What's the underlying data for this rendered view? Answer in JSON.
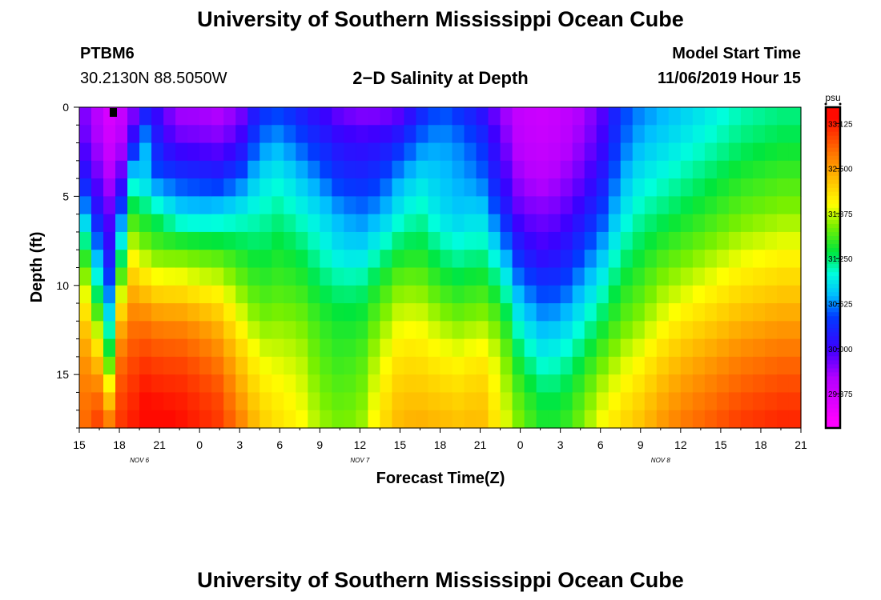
{
  "header": {
    "title": "University of Southern Mississippi Ocean Cube",
    "station_id": "PTBM6",
    "station_coords": "30.2130N 88.5050W",
    "chart_title": "2−D Salinity at Depth",
    "model_start_label": "Model Start Time",
    "model_start_value": "11/06/2019 Hour 15"
  },
  "footer": {
    "title": "University of Southern Mississippi Ocean Cube"
  },
  "chart_data": {
    "type": "heatmap",
    "title": "2−D Salinity at Depth",
    "xlabel": "Forecast Time(Z)",
    "ylabel": "Depth (ft)",
    "ylim": [
      0,
      18
    ],
    "x_start_hour_offset": 0,
    "x_end_hour_offset": 54,
    "x_ticks": [
      "15",
      "18",
      "21",
      "0",
      "3",
      "6",
      "9",
      "12",
      "15",
      "18",
      "21",
      "0",
      "3",
      "6",
      "9",
      "12",
      "15",
      "18",
      "21"
    ],
    "x_tick_hours": [
      0,
      3,
      6,
      9,
      12,
      15,
      18,
      21,
      24,
      27,
      30,
      33,
      36,
      39,
      42,
      45,
      48,
      51,
      54
    ],
    "date_labels": [
      {
        "text": "NOV  6",
        "hour": 4.5
      },
      {
        "text": "NOV  7",
        "hour": 21
      },
      {
        "text": "NOV  8",
        "hour": 43.5
      }
    ],
    "y_ticks": [
      "0",
      "5",
      "10",
      "15"
    ],
    "y_tick_values": [
      0,
      5,
      10,
      15
    ],
    "colorbar": {
      "unit": "psu",
      "min": 28.9,
      "max": 33.35,
      "ticks": [
        "33.125",
        "32.500",
        "31.875",
        "31.250",
        "30.625",
        "30.000",
        "29.375"
      ],
      "tick_values": [
        33.125,
        32.5,
        31.875,
        31.25,
        30.625,
        30.0,
        29.375
      ]
    },
    "column_hours": [
      0,
      0.75,
      1.5,
      2.25,
      3,
      3.75,
      4.5,
      5.25,
      6,
      7.5,
      9,
      10.5,
      12,
      13.5,
      15,
      16.5,
      18,
      19.5,
      21,
      22.5,
      24,
      25.5,
      27,
      28.5,
      30,
      31.5,
      33,
      34.5,
      36,
      37.5,
      39,
      40.5,
      42,
      43.5,
      45,
      46.5,
      48,
      49.5,
      51,
      52.5,
      54
    ],
    "column_profiles": [
      [
        29.8,
        29.95,
        30.3,
        30.9,
        31.6,
        32.1,
        32.3,
        32.45,
        32.55,
        32.6
      ],
      [
        29.7,
        29.8,
        30.1,
        30.6,
        31.2,
        31.7,
        32.2,
        32.6,
        32.8,
        32.9
      ],
      [
        29.5,
        29.6,
        29.8,
        30.1,
        30.5,
        31.0,
        31.6,
        32.2,
        32.7,
        33.0
      ],
      [
        29.3,
        29.4,
        29.6,
        29.9,
        30.1,
        30.5,
        31.0,
        31.5,
        32.2,
        32.8
      ],
      [
        29.4,
        29.5,
        29.7,
        30.3,
        30.9,
        31.6,
        32.3,
        32.7,
        32.9,
        33.0
      ],
      [
        29.6,
        29.9,
        30.8,
        31.5,
        32.0,
        32.4,
        32.7,
        32.9,
        33.0,
        33.1
      ],
      [
        29.8,
        30.6,
        31.1,
        31.4,
        31.8,
        32.3,
        32.7,
        32.9,
        33.1,
        33.2
      ],
      [
        30.3,
        30.8,
        30.6,
        31.3,
        31.7,
        32.2,
        32.7,
        33.0,
        33.2,
        33.3
      ],
      [
        29.9,
        30.1,
        30.5,
        31.2,
        31.6,
        32.1,
        32.6,
        32.9,
        33.1,
        33.3
      ],
      [
        29.6,
        29.9,
        30.4,
        30.9,
        31.6,
        32.1,
        32.6,
        32.9,
        33.1,
        33.2
      ],
      [
        29.6,
        29.85,
        30.35,
        30.85,
        31.55,
        32.0,
        32.5,
        32.8,
        33.0,
        33.1
      ],
      [
        29.55,
        29.8,
        30.3,
        30.9,
        31.5,
        31.95,
        32.35,
        32.65,
        32.9,
        33.0
      ],
      [
        29.7,
        30.0,
        30.5,
        31.0,
        31.4,
        31.7,
        32.0,
        32.3,
        32.5,
        32.7
      ],
      [
        30.3,
        30.6,
        30.9,
        31.1,
        31.3,
        31.5,
        31.7,
        31.95,
        32.15,
        32.3
      ],
      [
        30.4,
        30.7,
        31.0,
        31.2,
        31.4,
        31.55,
        31.75,
        31.9,
        32.05,
        32.15
      ],
      [
        30.2,
        30.5,
        30.8,
        31.05,
        31.3,
        31.5,
        31.7,
        31.85,
        31.95,
        32.05
      ],
      [
        30.0,
        30.3,
        30.6,
        30.9,
        31.1,
        31.3,
        31.5,
        31.6,
        31.7,
        31.8
      ],
      [
        29.8,
        30.1,
        30.35,
        30.7,
        30.9,
        31.2,
        31.4,
        31.5,
        31.6,
        31.7
      ],
      [
        29.7,
        30.05,
        30.3,
        30.6,
        30.85,
        31.2,
        31.4,
        31.55,
        31.65,
        31.75
      ],
      [
        29.7,
        30.1,
        30.4,
        30.7,
        31.1,
        31.45,
        31.7,
        31.9,
        32.05,
        32.15
      ],
      [
        29.8,
        30.3,
        30.7,
        31.0,
        31.35,
        31.7,
        31.95,
        32.15,
        32.3,
        32.4
      ],
      [
        30.2,
        30.6,
        30.9,
        31.15,
        31.4,
        31.7,
        31.95,
        32.15,
        32.3,
        32.45
      ],
      [
        30.5,
        30.7,
        30.8,
        30.9,
        31.2,
        31.5,
        31.8,
        32.05,
        32.25,
        32.4
      ],
      [
        30.3,
        30.6,
        30.7,
        30.8,
        31.1,
        31.4,
        31.7,
        32.0,
        32.2,
        32.35
      ],
      [
        30.1,
        30.4,
        30.6,
        30.9,
        31.2,
        31.5,
        31.8,
        32.1,
        32.3,
        32.4
      ],
      [
        29.7,
        29.9,
        30.1,
        30.4,
        30.8,
        31.25,
        31.6,
        31.85,
        31.95,
        32.05
      ],
      [
        29.45,
        29.5,
        29.65,
        29.85,
        30.2,
        30.6,
        30.95,
        31.3,
        31.55,
        31.7
      ],
      [
        29.4,
        29.45,
        29.55,
        29.8,
        30.0,
        30.4,
        30.7,
        31.0,
        31.3,
        31.45
      ],
      [
        29.45,
        29.5,
        29.65,
        29.85,
        30.1,
        30.4,
        30.75,
        31.05,
        31.3,
        31.45
      ],
      [
        29.6,
        29.7,
        29.85,
        30.1,
        30.4,
        30.7,
        31.0,
        31.3,
        31.55,
        31.7
      ],
      [
        29.85,
        29.95,
        30.15,
        30.4,
        30.7,
        31.0,
        31.3,
        31.6,
        31.85,
        32.0
      ],
      [
        30.4,
        30.5,
        30.7,
        30.9,
        31.15,
        31.4,
        31.6,
        31.85,
        32.05,
        32.2
      ],
      [
        30.6,
        30.75,
        30.95,
        31.15,
        31.35,
        31.55,
        31.75,
        32.0,
        32.2,
        32.35
      ],
      [
        30.7,
        30.85,
        31.05,
        31.25,
        31.5,
        31.75,
        31.95,
        32.2,
        32.4,
        32.55
      ],
      [
        30.8,
        30.95,
        31.15,
        31.35,
        31.6,
        31.85,
        32.1,
        32.35,
        32.55,
        32.7
      ],
      [
        30.9,
        31.05,
        31.25,
        31.45,
        31.7,
        31.95,
        32.2,
        32.45,
        32.65,
        32.8
      ],
      [
        31.0,
        31.15,
        31.35,
        31.55,
        31.8,
        32.05,
        32.3,
        32.55,
        32.75,
        32.9
      ],
      [
        31.1,
        31.25,
        31.45,
        31.65,
        31.9,
        32.15,
        32.4,
        32.65,
        32.85,
        33.0
      ],
      [
        31.15,
        31.3,
        31.5,
        31.7,
        31.95,
        32.2,
        32.45,
        32.7,
        32.9,
        33.05
      ],
      [
        31.2,
        31.35,
        31.55,
        31.75,
        32.0,
        32.25,
        32.5,
        32.75,
        32.95,
        33.1
      ],
      [
        31.2,
        31.35,
        31.55,
        31.75,
        32.0,
        32.25,
        32.5,
        32.75,
        32.95,
        33.1
      ]
    ]
  }
}
